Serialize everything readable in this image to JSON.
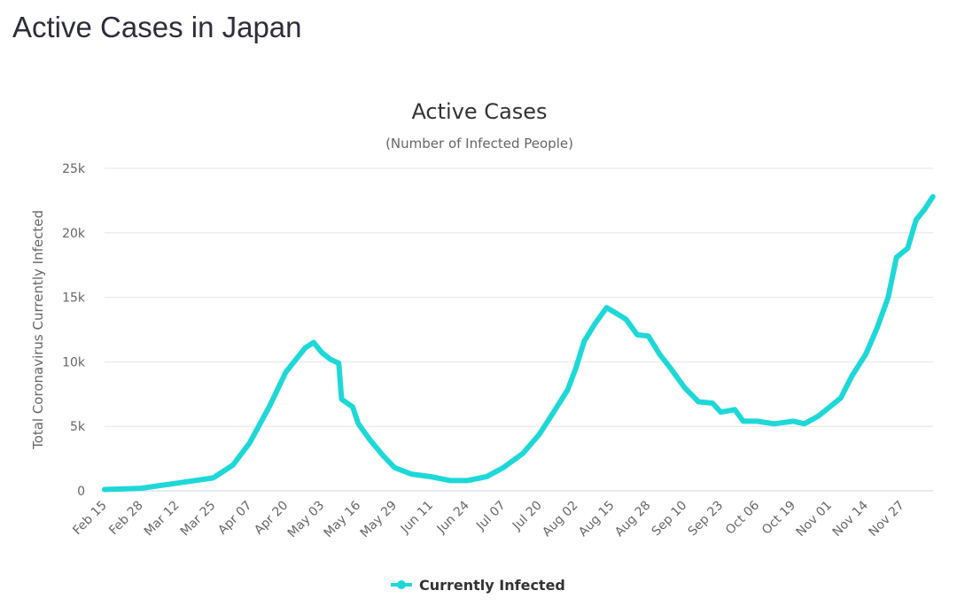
{
  "page_title": "Active Cases in Japan",
  "chart_data": {
    "type": "line",
    "title": "Active Cases",
    "subtitle": "(Number of Infected People)",
    "ylabel": "Total Coronavirus Currently Infected",
    "xlabel": "",
    "ylim": [
      0,
      25000
    ],
    "yticks": [
      0,
      5000,
      10000,
      15000,
      20000,
      25000
    ],
    "ytick_labels": [
      "0",
      "5k",
      "10k",
      "15k",
      "20k",
      "25k"
    ],
    "xtick_labels": [
      "Feb 15",
      "Feb 28",
      "Mar 12",
      "Mar 25",
      "Apr 07",
      "Apr 20",
      "May 03",
      "May 16",
      "May 29",
      "Jun 11",
      "Jun 24",
      "Jul 07",
      "Jul 20",
      "Aug 02",
      "Aug 15",
      "Aug 28",
      "Sep 10",
      "Sep 23",
      "Oct 06",
      "Oct 19",
      "Nov 01",
      "Nov 14",
      "Nov 27"
    ],
    "grid": true,
    "legend": "bottom-center",
    "color": "#1ed8d8",
    "series": [
      {
        "name": "Currently Infected",
        "x": [
          "2020-02-15",
          "2020-02-28",
          "2020-03-12",
          "2020-03-25",
          "2020-04-01",
          "2020-04-07",
          "2020-04-14",
          "2020-04-20",
          "2020-04-27",
          "2020-04-30",
          "2020-05-03",
          "2020-05-06",
          "2020-05-09",
          "2020-05-10",
          "2020-05-14",
          "2020-05-16",
          "2020-05-20",
          "2020-05-25",
          "2020-05-29",
          "2020-06-04",
          "2020-06-11",
          "2020-06-18",
          "2020-06-24",
          "2020-07-01",
          "2020-07-07",
          "2020-07-14",
          "2020-07-20",
          "2020-07-25",
          "2020-07-30",
          "2020-08-02",
          "2020-08-05",
          "2020-08-09",
          "2020-08-13",
          "2020-08-17",
          "2020-08-20",
          "2020-08-24",
          "2020-08-28",
          "2020-09-01",
          "2020-09-05",
          "2020-09-10",
          "2020-09-15",
          "2020-09-20",
          "2020-09-23",
          "2020-09-28",
          "2020-10-01",
          "2020-10-06",
          "2020-10-12",
          "2020-10-19",
          "2020-10-23",
          "2020-10-28",
          "2020-11-01",
          "2020-11-05",
          "2020-11-09",
          "2020-11-14",
          "2020-11-18",
          "2020-11-22",
          "2020-11-25",
          "2020-11-29",
          "2020-12-02",
          "2020-12-05",
          "2020-12-08"
        ],
        "values": [
          100,
          200,
          600,
          1000,
          2000,
          3700,
          6500,
          9200,
          11100,
          11500,
          10700,
          10200,
          9900,
          7100,
          6500,
          5200,
          4000,
          2700,
          1800,
          1300,
          1100,
          800,
          800,
          1100,
          1800,
          2900,
          4400,
          6100,
          7800,
          9500,
          11600,
          13000,
          14200,
          13700,
          13300,
          12100,
          12000,
          10600,
          9500,
          8000,
          6900,
          6800,
          6100,
          6300,
          5400,
          5400,
          5200,
          5400,
          5200,
          5800,
          6500,
          7200,
          8900,
          10600,
          12600,
          15000,
          18100,
          18800,
          21000,
          21800,
          22800
        ]
      }
    ]
  }
}
